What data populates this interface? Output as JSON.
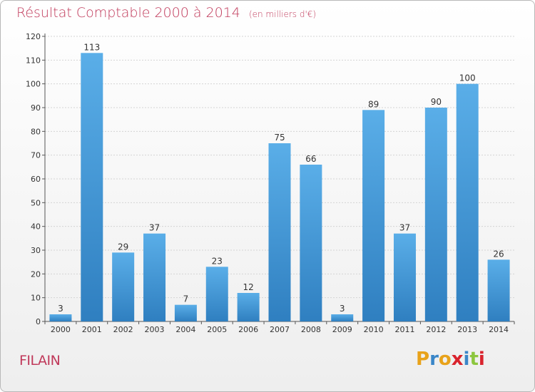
{
  "page": {
    "title": "Résultat Comptable 2000 à 2014",
    "title_unit": "(en milliers d'€)",
    "commune": "FILAIN",
    "logo_letters": [
      "P",
      "r",
      "o",
      "x",
      "i",
      "t",
      "i"
    ],
    "logo_colors": [
      "#e8a21a",
      "#3a86c8",
      "#e8a21a",
      "#d9232d",
      "#3a86c8",
      "#8cc63e",
      "#d9232d"
    ]
  },
  "chart_data": {
    "type": "bar",
    "title": "Résultat Comptable 2000 à 2014",
    "xlabel": "",
    "ylabel": "(en milliers d'€)",
    "categories": [
      "2000",
      "2001",
      "2002",
      "2003",
      "2004",
      "2005",
      "2006",
      "2007",
      "2008",
      "2009",
      "2010",
      "2011",
      "2012",
      "2013",
      "2014"
    ],
    "values": [
      3,
      113,
      29,
      37,
      7,
      23,
      12,
      75,
      66,
      3,
      89,
      37,
      90,
      100,
      26
    ],
    "ylim": [
      0,
      120
    ],
    "yticks": [
      0,
      10,
      20,
      30,
      40,
      50,
      60,
      70,
      80,
      90,
      100,
      110,
      120
    ],
    "grid": true,
    "bar_color_top": "#5aaee8",
    "bar_color_bottom": "#2f7fc0"
  }
}
